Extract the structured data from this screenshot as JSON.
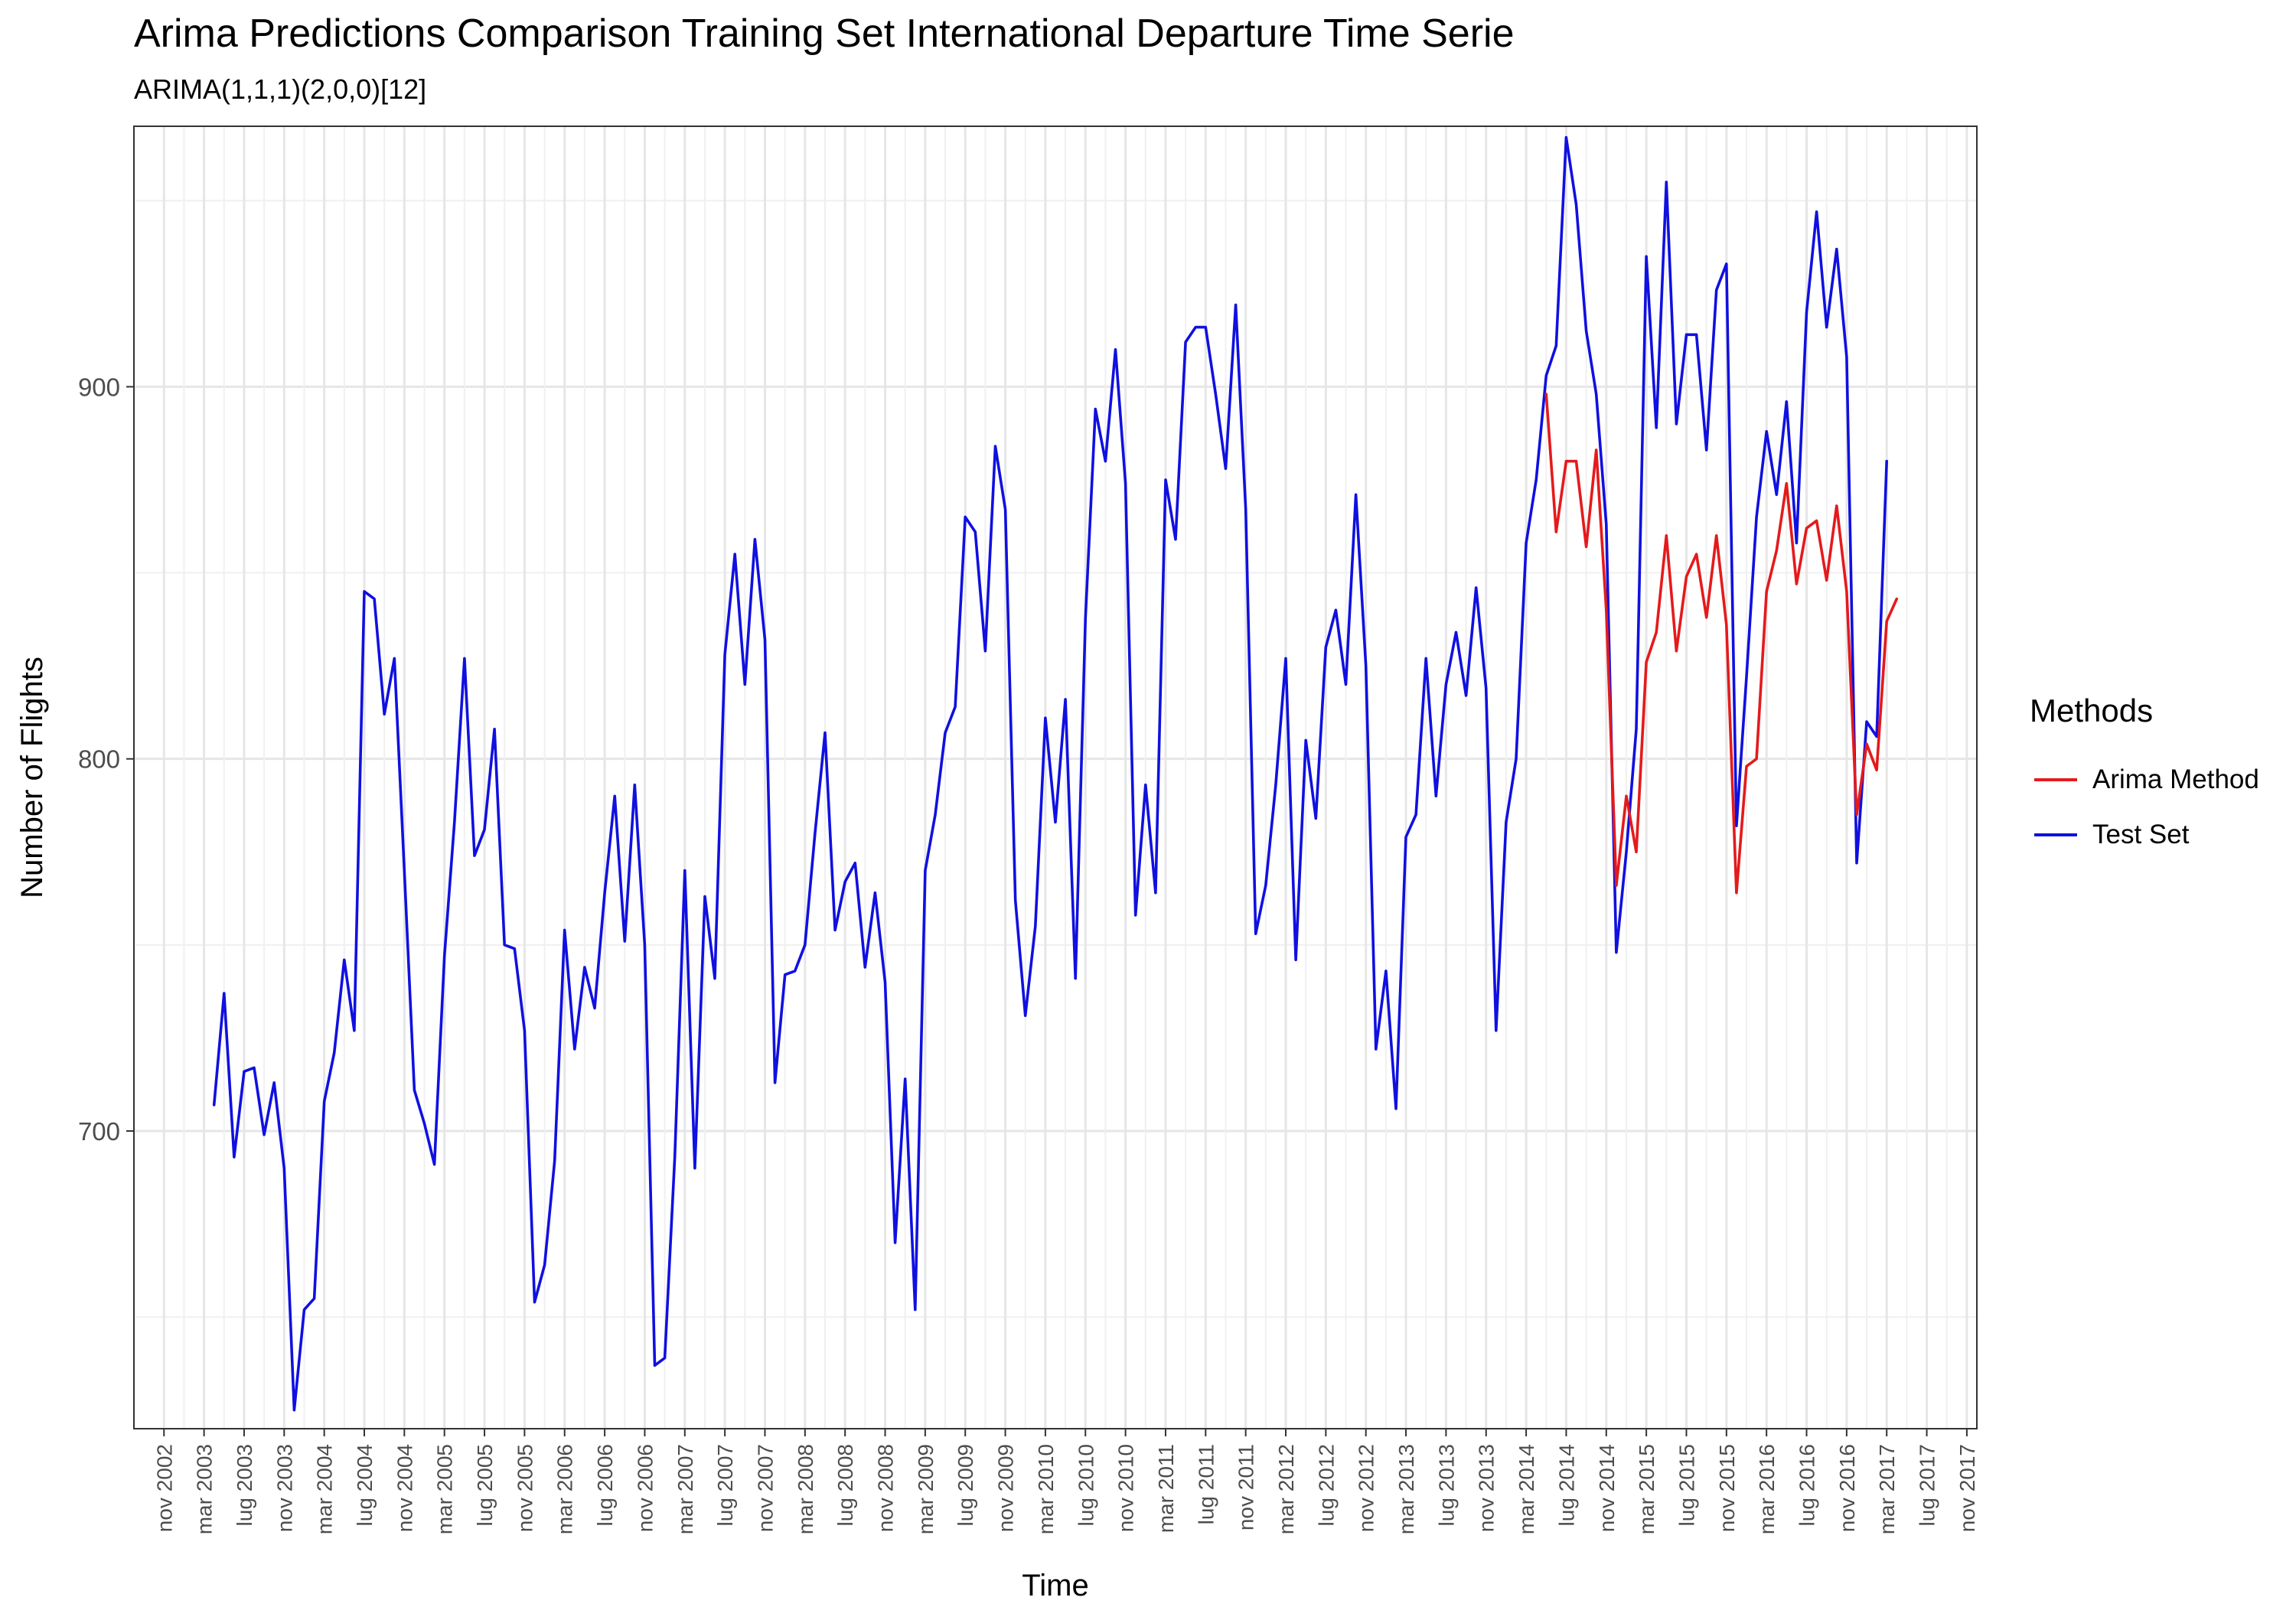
{
  "title": "Arima Predictions Comparison Training Set International Departure Time Serie",
  "subtitle": "ARIMA(1,1,1)(2,0,0)[12]",
  "chart_data": {
    "type": "line",
    "xlabel": "Time",
    "ylabel": "Number of Flights",
    "xlim": [
      "2002-08",
      "2017-12"
    ],
    "ylim": [
      620,
      970
    ],
    "y_ticks": [
      700,
      800,
      900
    ],
    "grid": true,
    "legend_title": "Methods",
    "legend_position": "right",
    "x_tick_labels": [
      "nov 2002",
      "mar 2003",
      "lug 2003",
      "nov 2003",
      "mar 2004",
      "lug 2004",
      "nov 2004",
      "mar 2005",
      "lug 2005",
      "nov 2005",
      "mar 2006",
      "lug 2006",
      "nov 2006",
      "mar 2007",
      "lug 2007",
      "nov 2007",
      "mar 2008",
      "lug 2008",
      "nov 2008",
      "mar 2009",
      "lug 2009",
      "nov 2009",
      "mar 2010",
      "lug 2010",
      "nov 2010",
      "mar 2011",
      "lug 2011",
      "nov 2011",
      "mar 2012",
      "lug 2012",
      "nov 2012",
      "mar 2013",
      "lug 2013",
      "nov 2013",
      "mar 2014",
      "lug 2014",
      "nov 2014",
      "mar 2015",
      "lug 2015",
      "nov 2015",
      "mar 2016",
      "lug 2016",
      "nov 2016",
      "mar 2017",
      "lug 2017",
      "nov 2017"
    ],
    "series": [
      {
        "name": "Arima Method",
        "color": "#e41a1c",
        "start": "2014-05",
        "values": [
          898,
          861,
          880,
          880,
          857,
          883,
          840,
          766,
          790,
          775,
          826,
          834,
          860,
          829,
          849,
          855,
          838,
          860,
          836,
          764,
          798,
          800,
          845,
          856,
          874,
          847,
          862,
          864,
          848,
          868,
          845,
          785,
          804,
          797,
          837,
          843
        ]
      },
      {
        "name": "Test Set",
        "color": "#1010e0",
        "start": "2003-04",
        "values": [
          707,
          737,
          693,
          716,
          717,
          699,
          713,
          690,
          625,
          652,
          655,
          708,
          721,
          746,
          727,
          845,
          843,
          812,
          827,
          770,
          711,
          702,
          691,
          747,
          783,
          827,
          774,
          781,
          808,
          750,
          749,
          727,
          654,
          664,
          692,
          754,
          722,
          744,
          733,
          764,
          790,
          751,
          793,
          750,
          637,
          639,
          693,
          770,
          690,
          763,
          741,
          828,
          855,
          820,
          859,
          832,
          713,
          742,
          743,
          750,
          780,
          807,
          754,
          767,
          772,
          744,
          764,
          740,
          670,
          714,
          652,
          770,
          785,
          807,
          814,
          865,
          861,
          829,
          884,
          867,
          762,
          731,
          755,
          811,
          783,
          816,
          741,
          838,
          894,
          880,
          910,
          874,
          758,
          793,
          764,
          875,
          859,
          912,
          916,
          916,
          898,
          878,
          922,
          867,
          753,
          766,
          793,
          827,
          746,
          805,
          784,
          830,
          840,
          820,
          871,
          825,
          722,
          743,
          706,
          779,
          785,
          827,
          790,
          820,
          834,
          817,
          846,
          819,
          727,
          783,
          800,
          858,
          875,
          903,
          911,
          967,
          949,
          915,
          898,
          863,
          748,
          775,
          808,
          935,
          889,
          955,
          890,
          914,
          914,
          883,
          926,
          933,
          782,
          822,
          865,
          888,
          871,
          896,
          858,
          920,
          947,
          916,
          937,
          908,
          772,
          810,
          806,
          880
        ]
      }
    ]
  }
}
